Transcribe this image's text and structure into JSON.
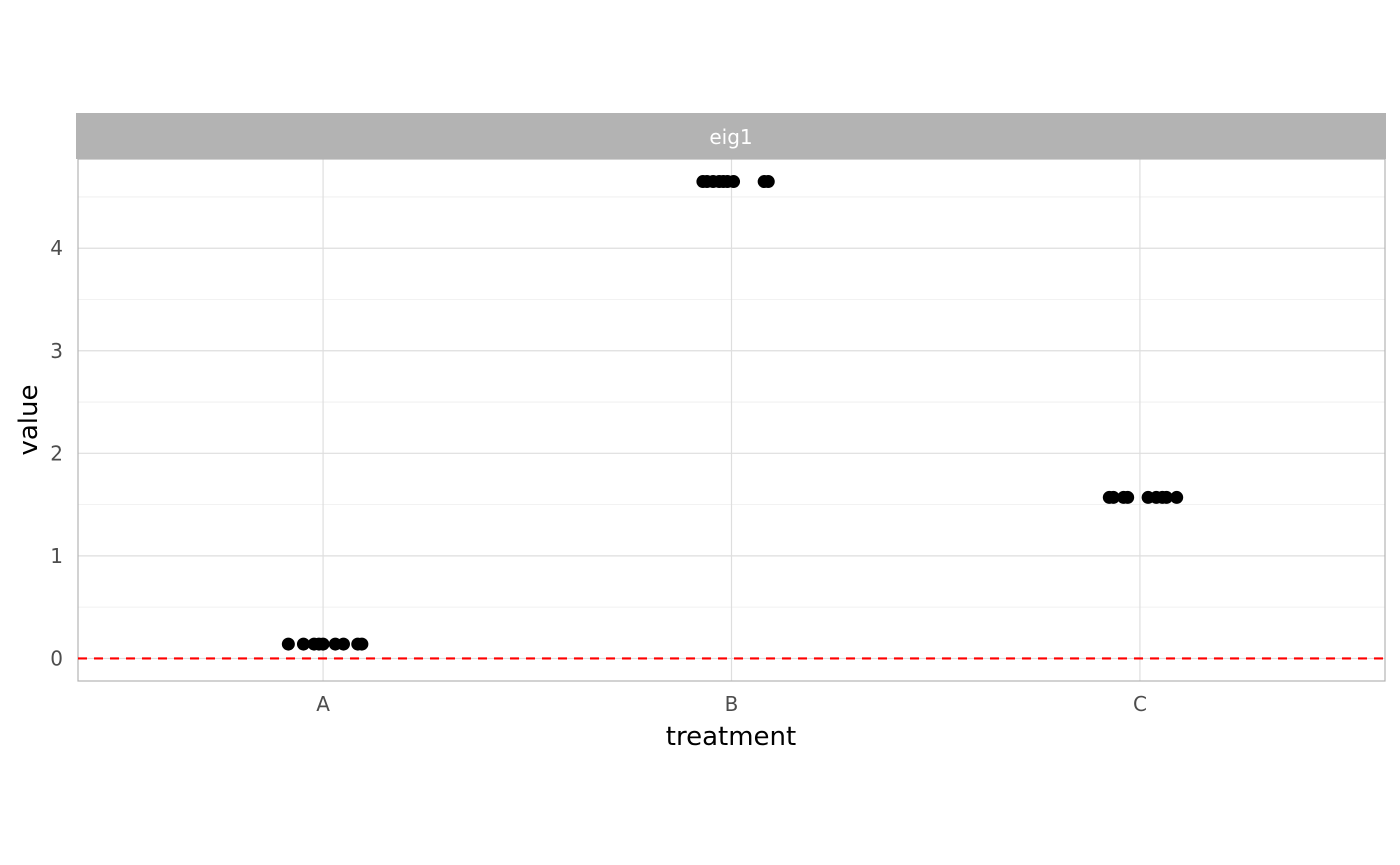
{
  "chart_data": {
    "type": "scatter",
    "title": "",
    "facet_label": "eig1",
    "xlabel": "treatment",
    "ylabel": "value",
    "categories": [
      "A",
      "B",
      "C"
    ],
    "ylim": [
      -0.22,
      4.87
    ],
    "y_ticks": [
      0,
      1,
      2,
      3,
      4
    ],
    "grid": true,
    "reference_line": {
      "y": 0,
      "color": "#ff0000",
      "style": "dashed"
    },
    "point_color": "#000000",
    "strip_color": "#b3b3b3",
    "series": [
      {
        "category": "A",
        "y": 0.14,
        "x_jitter": [
          -0.085,
          -0.048,
          -0.022,
          -0.01,
          0.0,
          0.03,
          0.05,
          0.085,
          0.095
        ]
      },
      {
        "category": "B",
        "y": 4.65,
        "x_jitter": [
          -0.07,
          -0.06,
          -0.045,
          -0.03,
          -0.02,
          -0.01,
          0.005,
          0.08,
          0.09
        ]
      },
      {
        "category": "C",
        "y": 1.57,
        "x_jitter": [
          -0.075,
          -0.065,
          -0.04,
          -0.03,
          0.02,
          0.04,
          0.055,
          0.065,
          0.09
        ]
      }
    ]
  }
}
